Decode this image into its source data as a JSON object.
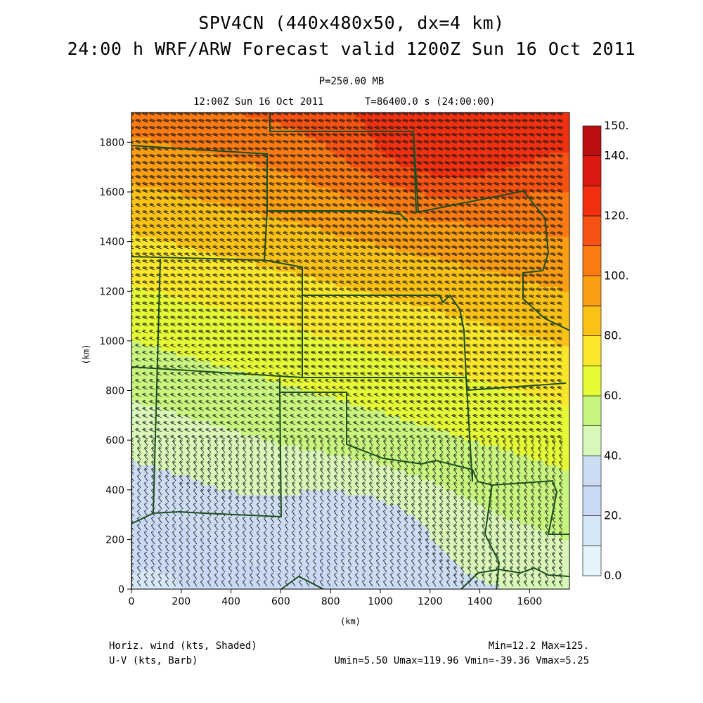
{
  "header": {
    "title_line1": "SPV4CN (440x480x50, dx=4 km)",
    "title_line2": "24:00 h  WRF/ARW Forecast valid 1200Z Sun 16 Oct 2011",
    "level": "P=250.00 MB",
    "valid_label": "12:00Z Sun 16 Oct 2011",
    "time_label": "T=86400.0 s (24:00:00)"
  },
  "footer": {
    "left1": "Horiz. wind (kts, Shaded)",
    "left2": "U-V (kts, Barb)",
    "right1": "Min=12.2 Max=125.",
    "right2": "Umin=5.50 Umax=119.96 Vmin=-39.36 Vmax=5.25"
  },
  "chart_data": {
    "type": "heatmap",
    "title": "SPV4CN (440x480x50, dx=4 km)",
    "subtitle": "24:00 h  WRF/ARW Forecast valid 1200Z Sun 16 Oct 2011",
    "xlabel": "(km)",
    "ylabel": "(km)",
    "xlim": [
      0,
      1760
    ],
    "ylim": [
      0,
      1920
    ],
    "x_ticks": [
      0,
      200,
      400,
      600,
      800,
      1000,
      1200,
      1400,
      1600
    ],
    "y_ticks": [
      0,
      200,
      400,
      600,
      800,
      1000,
      1200,
      1400,
      1600,
      1800
    ],
    "shaded_field": "Horiz. wind (kts, Shaded)",
    "barb_field": "U-V (kts, Barb)",
    "colorbar": {
      "levels": [
        0,
        10,
        20,
        30,
        40,
        50,
        60,
        70,
        80,
        90,
        100,
        110,
        120,
        130,
        140,
        150
      ],
      "colors": [
        "#e3f5fb",
        "#d6e8f8",
        "#cad9f5",
        "#ccdcf2",
        "#d8f7b8",
        "#c8f57e",
        "#e6fa36",
        "#fbe72a",
        "#fbc216",
        "#fb9e12",
        "#fb7a12",
        "#f85212",
        "#f03010",
        "#db1a12",
        "#bc0e10"
      ],
      "tick_labels": [
        "0.0",
        "20.",
        "40.",
        "60.",
        "80.",
        "100.",
        "120.",
        "140.",
        "150."
      ],
      "tick_values": [
        0,
        20,
        40,
        60,
        80,
        100,
        120,
        140,
        150
      ]
    },
    "statistics": {
      "min": 12.2,
      "max": 125.0,
      "umin": 5.5,
      "umax": 119.96,
      "vmin": -39.36,
      "vmax": 5.25
    },
    "grid": false,
    "legend_position": "right"
  }
}
